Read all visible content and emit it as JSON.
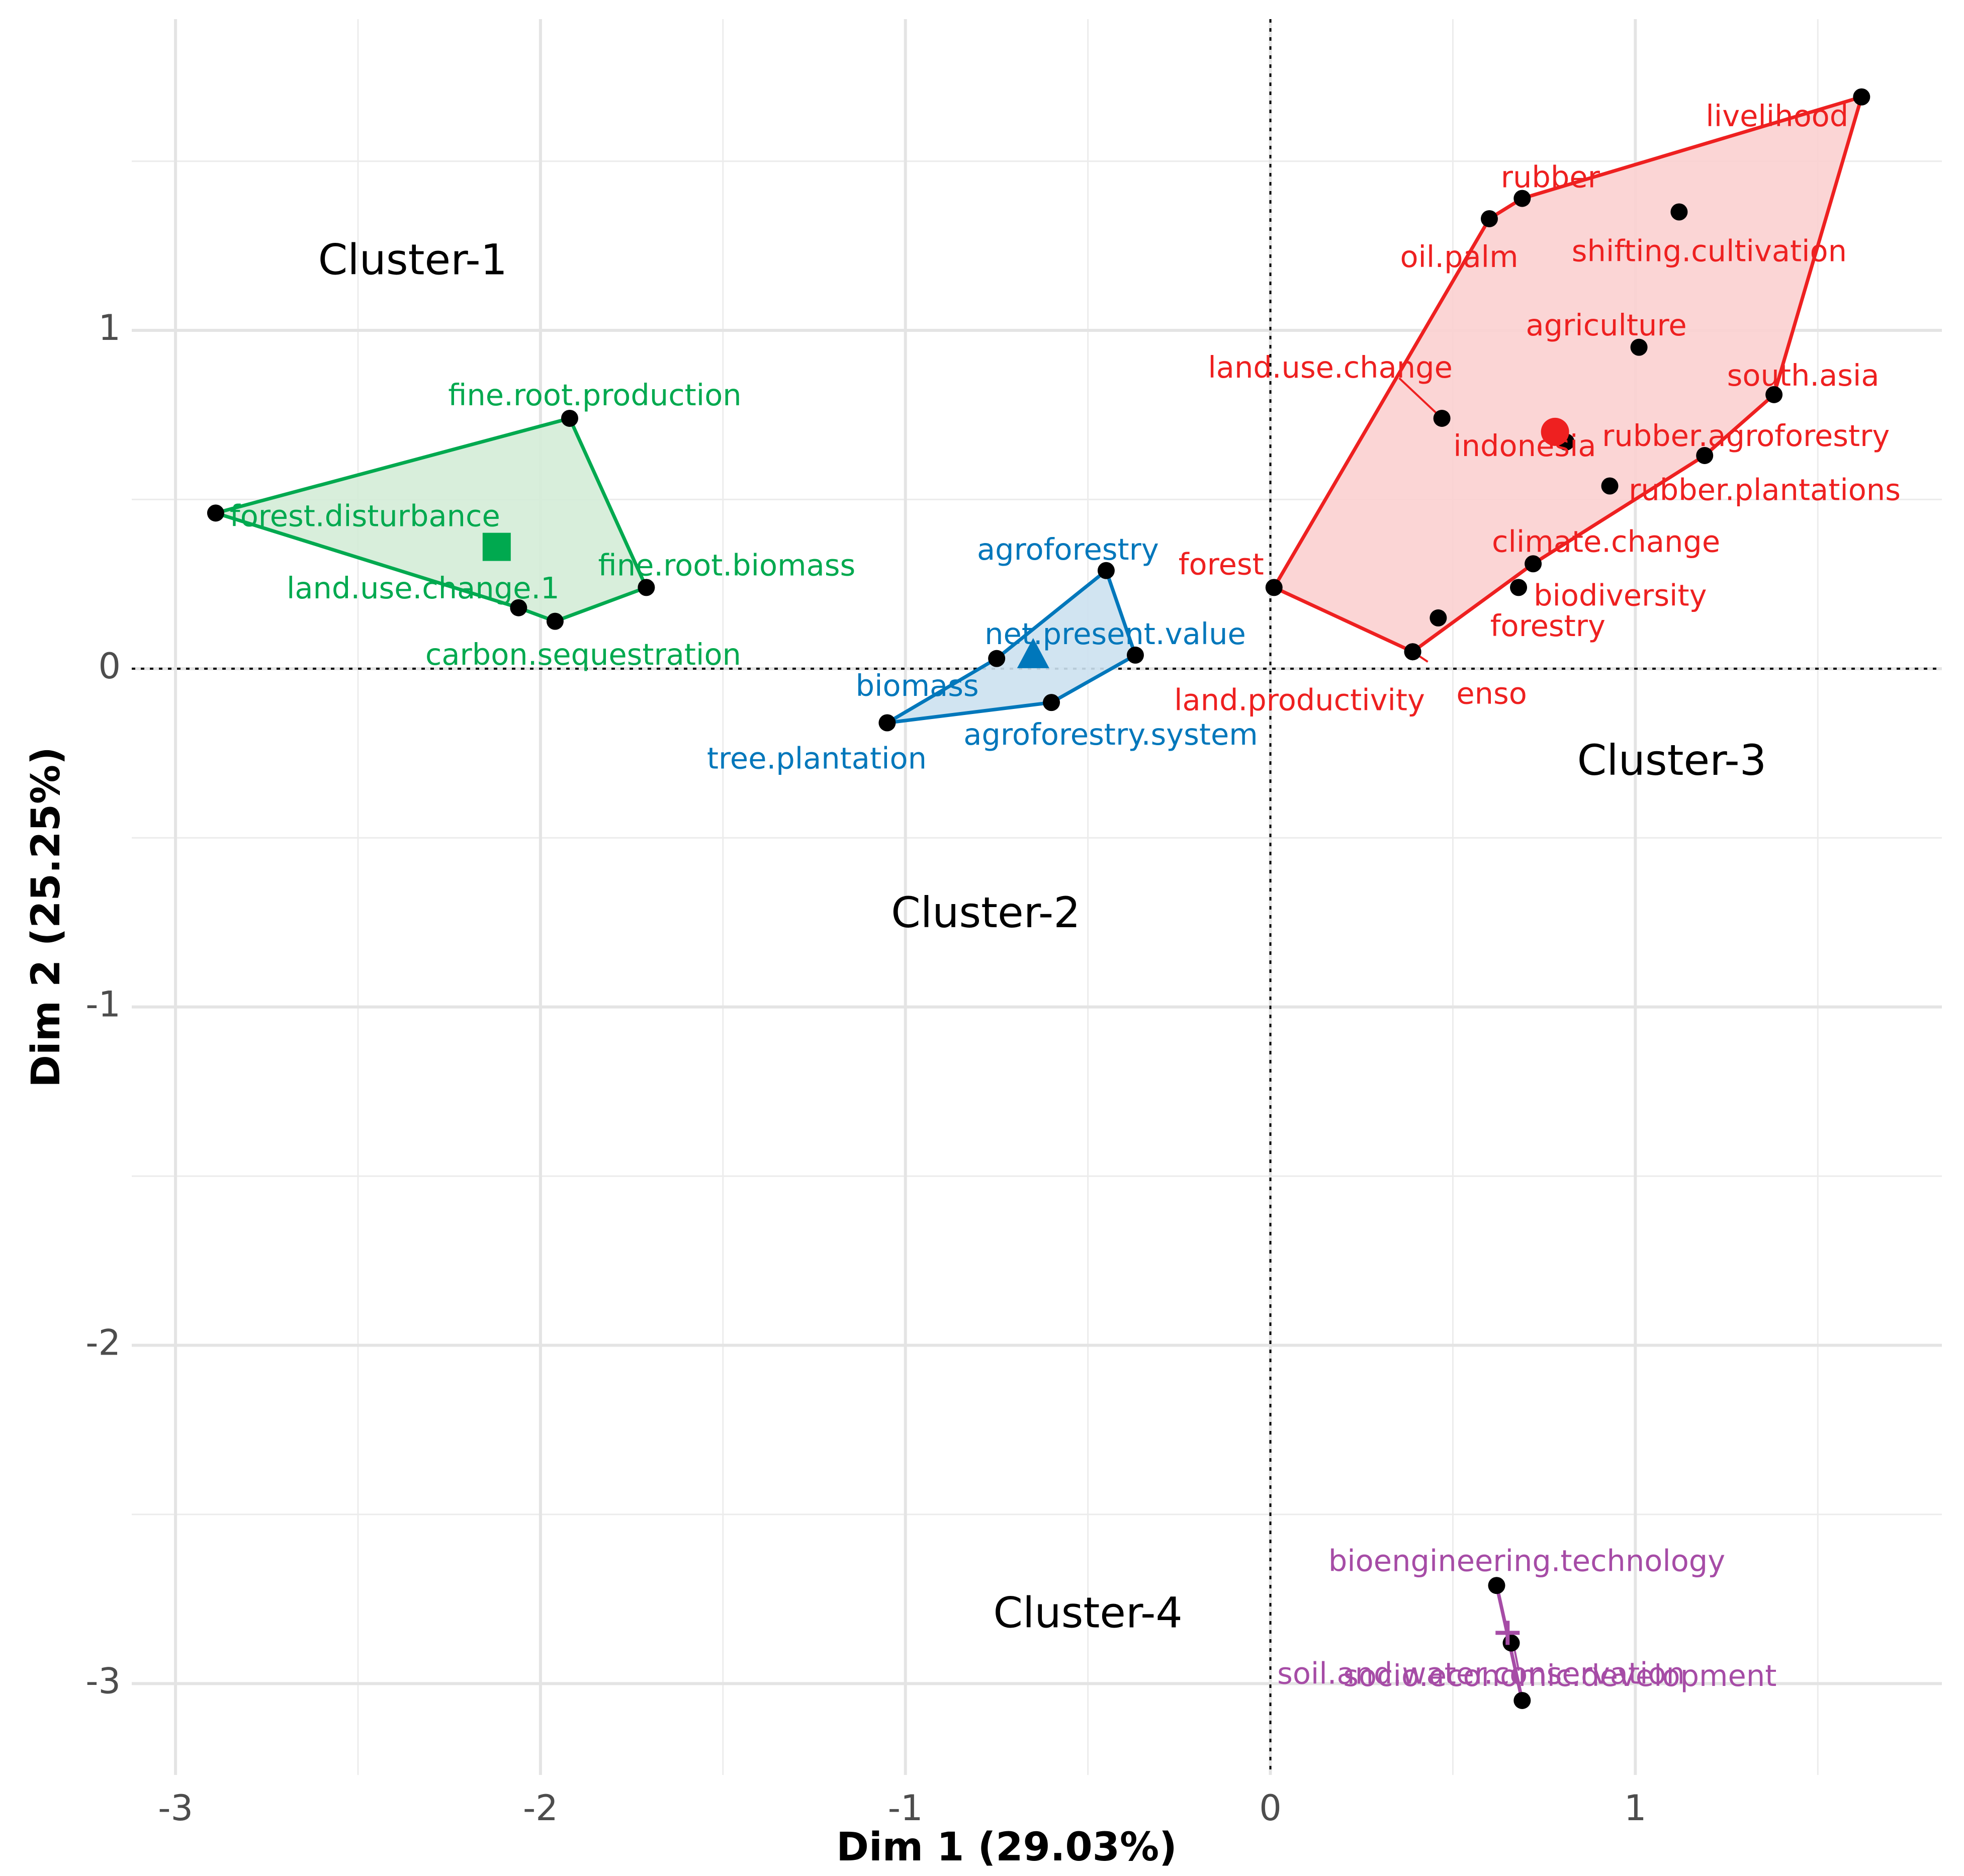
{
  "chart_data": {
    "type": "scatter",
    "title": "",
    "xlabel": "Dim 1 (29.03%)",
    "ylabel": "Dim 2 (25.25%)",
    "xlim": [
      -3.12,
      1.84
    ],
    "ylim": [
      -3.27,
      1.92
    ],
    "xticks": [
      -3,
      -2,
      -1,
      0,
      1
    ],
    "yticks": [
      -3,
      -2,
      -1,
      0,
      1
    ],
    "xtick_labels": [
      "-3",
      "-2",
      "-1",
      "0",
      "1"
    ],
    "ytick_labels": [
      "-3",
      "-2",
      "-1",
      "0",
      "1"
    ],
    "grid": true,
    "reference_lines": {
      "x": 0,
      "y": 0,
      "style": "dotted"
    },
    "clusters": [
      {
        "name": "Cluster-1",
        "color": "#00a94f",
        "fill": "#d4ecd7",
        "centroid": {
          "x": -2.12,
          "y": 0.36,
          "shape": "square"
        },
        "hull": [
          "forest.disturbance",
          "fine.root.production",
          "fine.root.biomass",
          "carbon.sequestration",
          "land.use.change.1"
        ],
        "points": [
          {
            "label": "fine.root.production",
            "x": -1.92,
            "y": 0.74
          },
          {
            "label": "forest.disturbance",
            "x": -2.89,
            "y": 0.46
          },
          {
            "label": "fine.root.biomass",
            "x": -1.71,
            "y": 0.24
          },
          {
            "label": "land.use.change.1",
            "x": -2.06,
            "y": 0.18
          },
          {
            "label": "carbon.sequestration",
            "x": -1.96,
            "y": 0.14
          }
        ]
      },
      {
        "name": "Cluster-2",
        "color": "#0077bb",
        "fill": "#cce1f0",
        "centroid": {
          "x": -0.65,
          "y": 0.04,
          "shape": "triangle"
        },
        "hull": [
          "tree.plantation",
          "biomass",
          "agroforestry",
          "net.present.value",
          "agroforestry.system"
        ],
        "points": [
          {
            "label": "agroforestry",
            "x": -0.45,
            "y": 0.29
          },
          {
            "label": "net.present.value",
            "x": -0.37,
            "y": 0.04
          },
          {
            "label": "biomass",
            "x": -0.75,
            "y": 0.03
          },
          {
            "label": "agroforestry.system",
            "x": -0.6,
            "y": -0.1
          },
          {
            "label": "tree.plantation",
            "x": -1.05,
            "y": -0.16
          }
        ]
      },
      {
        "name": "Cluster-3",
        "color": "#ee2020",
        "fill": "#fbd0d0",
        "centroid": {
          "x": 0.78,
          "y": 0.7,
          "shape": "circle"
        },
        "hull": [
          "forest",
          "oil.palm",
          "rubber",
          "livelihood",
          "south.asia",
          "rubber.agroforestry",
          "climate.change",
          "land.productivity"
        ],
        "points": [
          {
            "label": "livelihood",
            "x": 1.62,
            "y": 1.69
          },
          {
            "label": "rubber",
            "x": 0.69,
            "y": 1.39
          },
          {
            "label": "oil.palm",
            "x": 0.6,
            "y": 1.33
          },
          {
            "label": "shifting.cultivation",
            "x": 1.12,
            "y": 1.35
          },
          {
            "label": "agriculture",
            "x": 1.01,
            "y": 0.95
          },
          {
            "label": "south.asia",
            "x": 1.38,
            "y": 0.81
          },
          {
            "label": "land.use.change",
            "x": 0.47,
            "y": 0.74
          },
          {
            "label": "indonesia",
            "x": 0.81,
            "y": 0.67
          },
          {
            "label": "rubber.agroforestry",
            "x": 1.19,
            "y": 0.63
          },
          {
            "label": "rubber.plantations",
            "x": 0.93,
            "y": 0.54
          },
          {
            "label": "climate.change",
            "x": 0.72,
            "y": 0.31
          },
          {
            "label": "forest",
            "x": 0.01,
            "y": 0.24
          },
          {
            "label": "biodiversity",
            "x": 0.68,
            "y": 0.24
          },
          {
            "label": "forestry",
            "x": 0.46,
            "y": 0.15
          },
          {
            "label": "enso",
            "x": 0.39,
            "y": 0.05
          },
          {
            "label": "land.productivity",
            "x": 0.39,
            "y": 0.05
          }
        ]
      },
      {
        "name": "Cluster-4",
        "color": "#a64ca6",
        "fill": "#e8cfe8",
        "centroid": {
          "x": 0.65,
          "y": -2.85,
          "shape": "plus"
        },
        "hull": [
          "bioengineering.technology",
          "socio.economic.development"
        ],
        "points": [
          {
            "label": "bioengineering.technology",
            "x": 0.62,
            "y": -2.71
          },
          {
            "label": "soil.and.water.conservation",
            "x": 0.66,
            "y": -2.88
          },
          {
            "label": "socio.economic.development",
            "x": 0.69,
            "y": -3.05
          }
        ]
      }
    ]
  }
}
